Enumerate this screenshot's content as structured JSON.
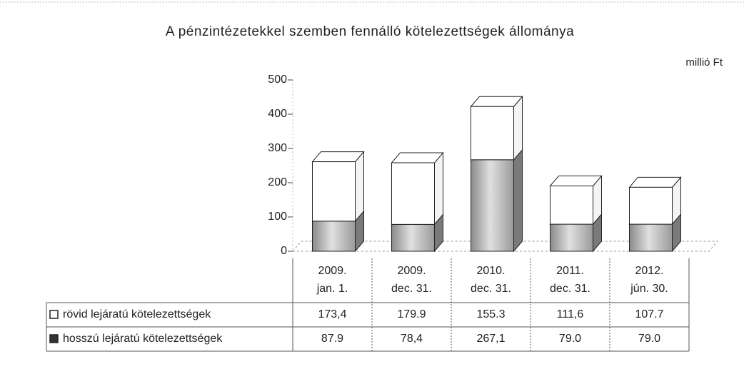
{
  "chart_data": {
    "type": "bar",
    "stacked": true,
    "three_d": true,
    "title": "A pénzintézetekkel szemben fennálló kötelezettségek állománya",
    "unit_label": "millió Ft",
    "categories": [
      [
        "2009.",
        "jan. 1."
      ],
      [
        "2009.",
        "dec. 31."
      ],
      [
        "2010.",
        "dec. 31."
      ],
      [
        "2011.",
        "dec. 31."
      ],
      [
        "2012.",
        "jún. 30."
      ]
    ],
    "series": [
      {
        "name": "hosszú lejáratú kötelezettségek",
        "color": "#b4b4b4",
        "values": [
          87.9,
          78.4,
          267.1,
          79.0,
          79.0
        ],
        "value_labels": [
          "87.9",
          "78,4",
          "267,1",
          "79.0",
          "79.0"
        ]
      },
      {
        "name": "rövid lejáratú kötelezettségek",
        "color": "#ffffff",
        "values": [
          173.4,
          179.9,
          155.3,
          111.6,
          107.7
        ],
        "value_labels": [
          "173,4",
          "179.9",
          "155.3",
          "111,6",
          "107.7"
        ]
      }
    ],
    "ylim": [
      0,
      500
    ],
    "yticks": [
      0,
      100,
      200,
      300,
      400,
      500
    ]
  }
}
